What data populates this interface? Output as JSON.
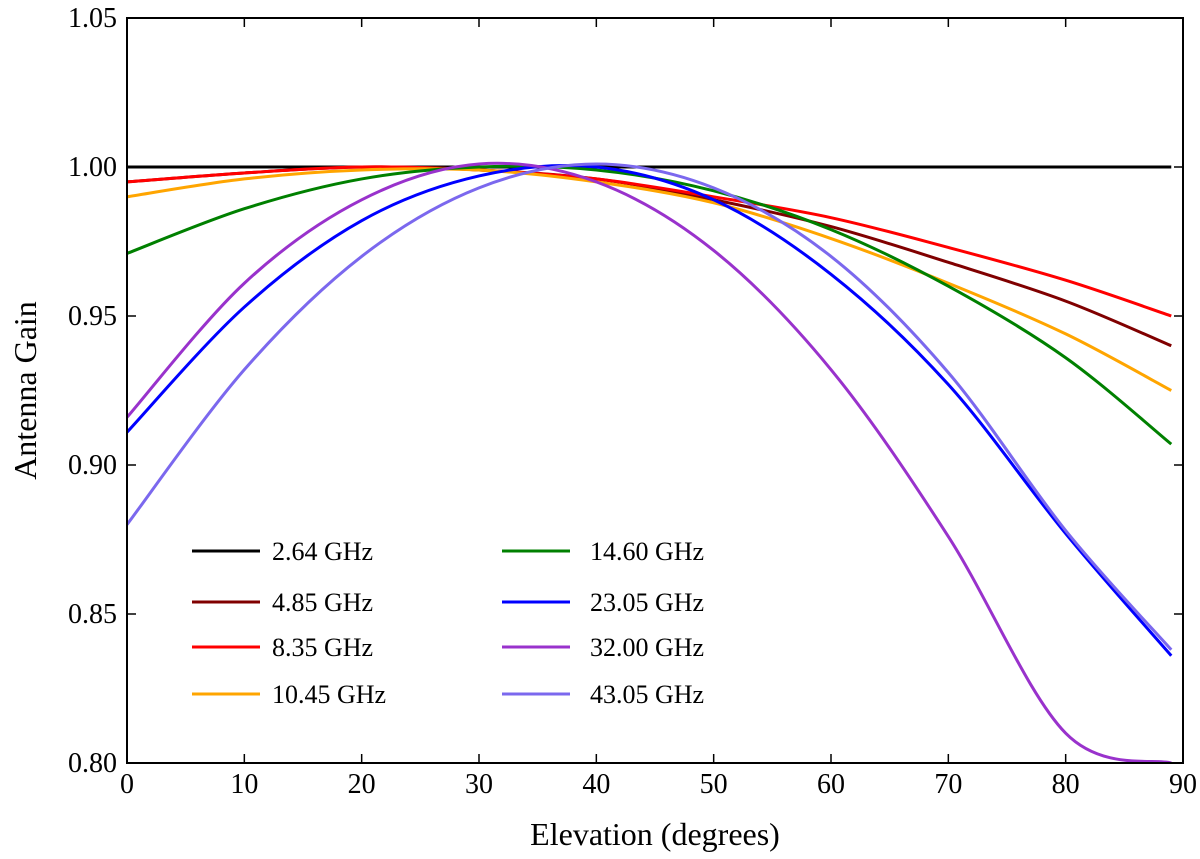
{
  "chart_data": {
    "type": "line",
    "title": "",
    "xlabel": "Elevation (degrees)",
    "ylabel": "Antenna Gain",
    "xlim": [
      0,
      90
    ],
    "ylim": [
      0.8,
      1.05
    ],
    "x_ticks": [
      "0",
      "10",
      "20",
      "30",
      "40",
      "50",
      "60",
      "70",
      "80",
      "90"
    ],
    "y_ticks": [
      "0.80",
      "0.85",
      "0.90",
      "0.95",
      "1.00",
      "1.05"
    ],
    "grid": false,
    "legend_position": "lower-left",
    "x": [
      0,
      10,
      20,
      30,
      40,
      50,
      60,
      70,
      80,
      89
    ],
    "series": [
      {
        "name": "2.64 GHz",
        "color": "#000000",
        "values": [
          1.0,
          1.0,
          1.0,
          1.0,
          1.0,
          1.0,
          1.0,
          1.0,
          1.0,
          1.0
        ]
      },
      {
        "name": "4.85 GHz",
        "color": "#800000",
        "values": [
          0.995,
          0.998,
          1.0,
          0.999,
          0.996,
          0.989,
          0.98,
          0.968,
          0.955,
          0.94
        ]
      },
      {
        "name": "8.35 GHz",
        "color": "#ff0000",
        "values": [
          0.995,
          0.998,
          1.0,
          0.999,
          0.996,
          0.99,
          0.983,
          0.973,
          0.962,
          0.95
        ]
      },
      {
        "name": "10.45 GHz",
        "color": "#ffa500",
        "values": [
          0.99,
          0.996,
          0.999,
          0.999,
          0.995,
          0.988,
          0.976,
          0.961,
          0.944,
          0.925
        ]
      },
      {
        "name": "14.60 GHz",
        "color": "#008000",
        "values": [
          0.971,
          0.986,
          0.996,
          1.0,
          0.999,
          0.992,
          0.979,
          0.96,
          0.936,
          0.907
        ]
      },
      {
        "name": "23.05 GHz",
        "color": "#0000ff",
        "values": [
          0.911,
          0.953,
          0.982,
          0.997,
          1.0,
          0.989,
          0.964,
          0.927,
          0.877,
          0.836
        ]
      },
      {
        "name": "32.00 GHz",
        "color": "#9932cc",
        "values": [
          0.916,
          0.961,
          0.989,
          1.001,
          0.995,
          0.972,
          0.932,
          0.876,
          0.81,
          0.8
        ]
      },
      {
        "name": "43.05 GHz",
        "color": "#7b68ee",
        "values": [
          0.88,
          0.932,
          0.97,
          0.993,
          1.001,
          0.993,
          0.97,
          0.931,
          0.878,
          0.838
        ]
      }
    ]
  }
}
